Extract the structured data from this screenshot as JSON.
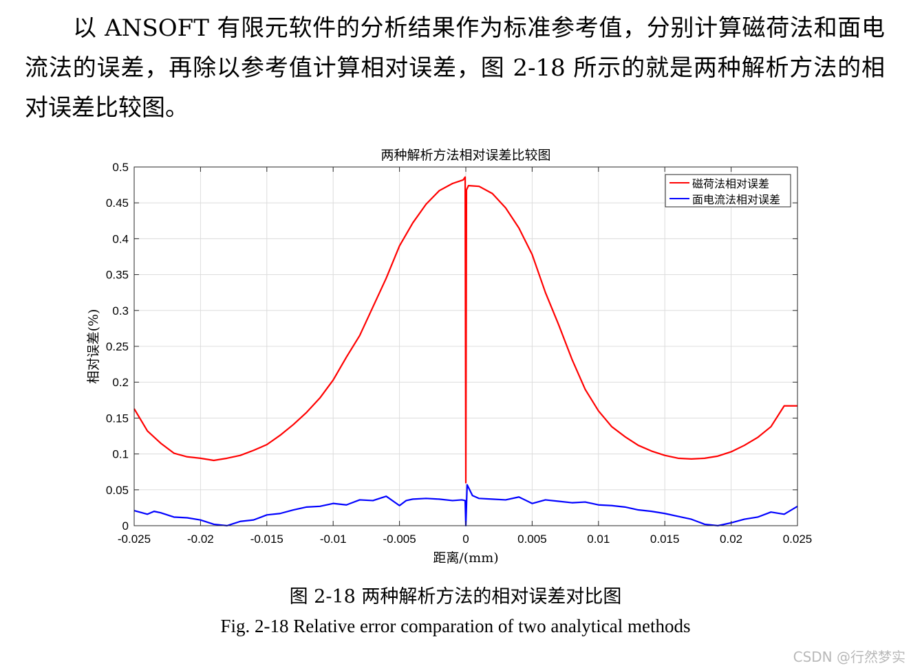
{
  "paragraph": "以 ANSOFT 有限元软件的分析结果作为标准参考值，分别计算磁荷法和面电流法的误差，再除以参考值计算相对误差，图 2-18 所示的就是两种解析方法的相对误差比较图。",
  "caption_cn": "图 2-18 两种解析方法的相对误差对比图",
  "caption_en": "Fig. 2-18 Relative error comparation of two analytical methods",
  "watermark": "CSDN @行然梦实",
  "chart_data": {
    "type": "line",
    "title": "两种解析方法相对误差比较图",
    "xlabel": "距离/(mm)",
    "ylabel": "相对误差(%)",
    "xlim": [
      -0.025,
      0.025
    ],
    "ylim": [
      0,
      0.5
    ],
    "xticks": [
      "-0.025",
      "-0.02",
      "-0.015",
      "-0.01",
      "-0.005",
      "0",
      "0.005",
      "0.01",
      "0.015",
      "0.02",
      "0.025"
    ],
    "yticks": [
      "0",
      "0.05",
      "0.1",
      "0.15",
      "0.2",
      "0.25",
      "0.3",
      "0.35",
      "0.4",
      "0.45",
      "0.5"
    ],
    "grid": true,
    "legend_position": "top-right",
    "series": [
      {
        "name": "磁荷法相对误差",
        "color": "#ff0000",
        "x": [
          -0.025,
          -0.024,
          -0.023,
          -0.022,
          -0.021,
          -0.02,
          -0.019,
          -0.018,
          -0.017,
          -0.016,
          -0.015,
          -0.014,
          -0.013,
          -0.012,
          -0.011,
          -0.01,
          -0.009,
          -0.008,
          -0.007,
          -0.006,
          -0.005,
          -0.004,
          -0.003,
          -0.002,
          -0.001,
          -0.0002,
          -5e-05,
          0.0,
          5e-05,
          0.0002,
          0.001,
          0.002,
          0.003,
          0.004,
          0.005,
          0.006,
          0.007,
          0.008,
          0.009,
          0.01,
          0.011,
          0.012,
          0.013,
          0.014,
          0.015,
          0.016,
          0.017,
          0.018,
          0.019,
          0.02,
          0.021,
          0.022,
          0.023,
          0.024,
          0.025
        ],
        "y": [
          0.163,
          0.132,
          0.115,
          0.101,
          0.096,
          0.094,
          0.091,
          0.094,
          0.098,
          0.105,
          0.113,
          0.126,
          0.141,
          0.158,
          0.178,
          0.203,
          0.235,
          0.265,
          0.305,
          0.345,
          0.39,
          0.422,
          0.448,
          0.467,
          0.477,
          0.482,
          0.486,
          0.06,
          0.468,
          0.474,
          0.473,
          0.463,
          0.443,
          0.415,
          0.378,
          0.325,
          0.28,
          0.232,
          0.19,
          0.16,
          0.138,
          0.124,
          0.112,
          0.104,
          0.098,
          0.094,
          0.093,
          0.094,
          0.097,
          0.103,
          0.112,
          0.123,
          0.138,
          0.167,
          0.167
        ]
      },
      {
        "name": "面电流法相对误差",
        "color": "#0000ff",
        "x": [
          -0.025,
          -0.024,
          -0.0235,
          -0.023,
          -0.022,
          -0.021,
          -0.02,
          -0.019,
          -0.0185,
          -0.018,
          -0.017,
          -0.016,
          -0.015,
          -0.014,
          -0.013,
          -0.012,
          -0.011,
          -0.01,
          -0.009,
          -0.008,
          -0.007,
          -0.006,
          -0.005,
          -0.0045,
          -0.004,
          -0.003,
          -0.002,
          -0.001,
          -0.0003,
          -5e-05,
          0.0,
          0.0001,
          0.0005,
          0.001,
          0.002,
          0.003,
          0.004,
          0.005,
          0.006,
          0.007,
          0.008,
          0.009,
          0.01,
          0.011,
          0.012,
          0.013,
          0.014,
          0.015,
          0.016,
          0.017,
          0.018,
          0.019,
          0.02,
          0.021,
          0.022,
          0.023,
          0.024,
          0.025
        ],
        "y": [
          0.021,
          0.016,
          0.02,
          0.018,
          0.012,
          0.011,
          0.008,
          0.002,
          0.001,
          0.0,
          0.006,
          0.008,
          0.015,
          0.017,
          0.022,
          0.026,
          0.027,
          0.031,
          0.029,
          0.036,
          0.035,
          0.041,
          0.028,
          0.035,
          0.037,
          0.038,
          0.037,
          0.035,
          0.036,
          0.035,
          0.0,
          0.057,
          0.042,
          0.038,
          0.037,
          0.036,
          0.04,
          0.031,
          0.036,
          0.034,
          0.032,
          0.033,
          0.029,
          0.028,
          0.026,
          0.022,
          0.02,
          0.017,
          0.013,
          0.009,
          0.002,
          0.0,
          0.004,
          0.009,
          0.012,
          0.019,
          0.016,
          0.027
        ]
      }
    ]
  }
}
